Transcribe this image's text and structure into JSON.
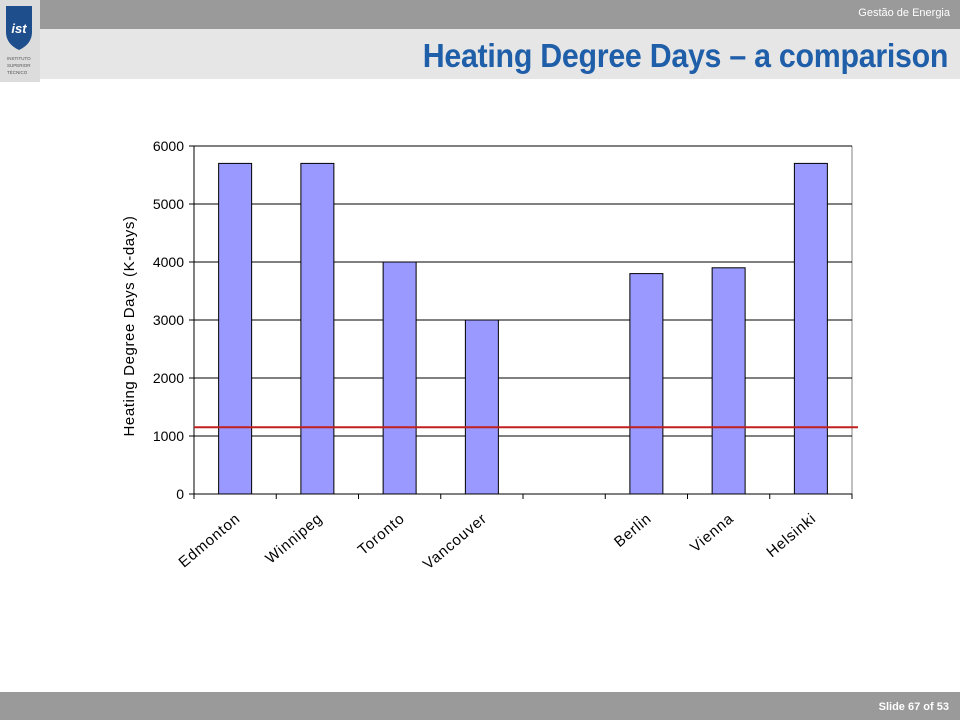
{
  "header": {
    "course": "Gestão de Energia"
  },
  "logo": {
    "mark": "ist",
    "lines": [
      "INSTITUTO",
      "SUPERIOR",
      "TÉCNICO"
    ]
  },
  "slide": {
    "title": "Heating Degree Days – a comparison"
  },
  "footer": {
    "slide_prefix": "Slide",
    "slide_number": "67",
    "of": "of",
    "total": "53"
  },
  "colors": {
    "bar": "#9999ff",
    "reference_line": "#c0201e",
    "title": "#1f5ea8",
    "band": "#9a9a9a"
  },
  "chart_data": {
    "type": "bar",
    "categories": [
      "Edmonton",
      "Winnipeg",
      "Toronto",
      "Vancouver",
      "",
      "Berlin",
      "Vienna",
      "Helsinki"
    ],
    "values": [
      5700,
      5700,
      4000,
      3000,
      null,
      3800,
      3900,
      5700
    ],
    "ylabel": "Heating Degree Days (K-days)",
    "xlabel": "",
    "ylim": [
      0,
      6000
    ],
    "yticks": [
      0,
      1000,
      2000,
      3000,
      4000,
      5000,
      6000
    ],
    "grid": true,
    "reference_line": {
      "y": 1150,
      "color": "#c0201e"
    }
  }
}
